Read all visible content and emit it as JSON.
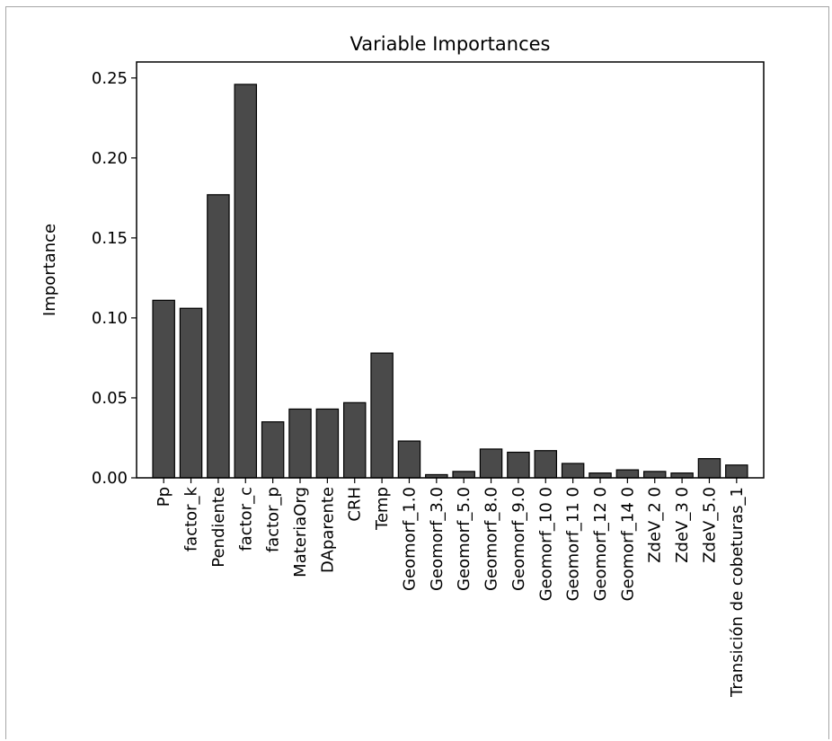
{
  "chart_data": {
    "type": "bar",
    "title": "Variable Importances",
    "xlabel": "",
    "ylabel": "Importance",
    "ylim": [
      0,
      0.26
    ],
    "yticks": [
      "0.00",
      "0.05",
      "0.10",
      "0.15",
      "0.20",
      "0.25"
    ],
    "bar_color": "#4a4a4a",
    "edge_color": "#000000",
    "grid": false,
    "categories": [
      "Pp",
      "factor_k",
      "Pendiente",
      "factor_c",
      "factor_p",
      "MateriaOrg",
      "DAparente",
      "CRH",
      "Temp",
      "Geomorf_1.0",
      "Geomorf_3.0",
      "Geomorf_5.0",
      "Geomorf_8.0",
      "Geomorf_9.0",
      "Geomorf_10 0",
      "Geomorf_11 0",
      "Geomorf_12 0",
      "Geomorf_14 0",
      "ZdeV_2 0",
      "ZdeV_3 0",
      "ZdeV_5.0",
      "Transición de cobeturas_1"
    ],
    "values": [
      0.111,
      0.106,
      0.177,
      0.246,
      0.035,
      0.043,
      0.043,
      0.047,
      0.078,
      0.023,
      0.002,
      0.004,
      0.018,
      0.016,
      0.017,
      0.009,
      0.003,
      0.005,
      0.004,
      0.003,
      0.012,
      0.008
    ]
  }
}
